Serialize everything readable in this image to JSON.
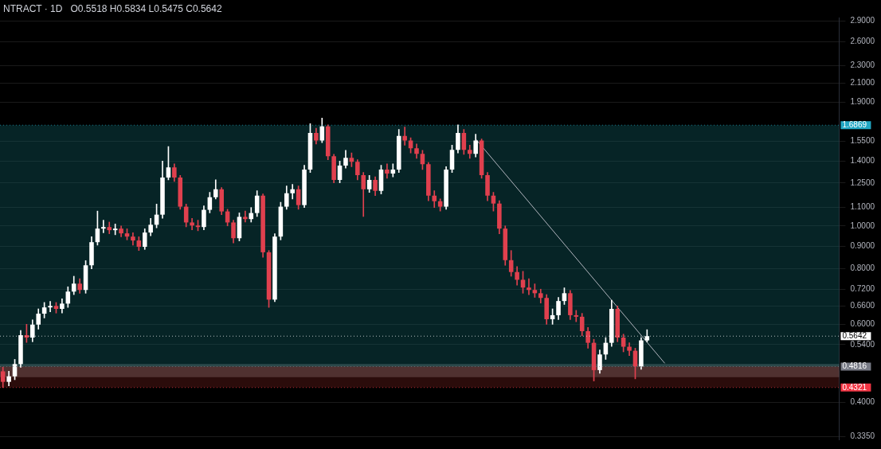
{
  "chart_data": {
    "type": "candlestick",
    "title": "NTRACT · 1D",
    "annotations": [
      "O0.5518 H0.5834 L0.5475 C0.5642"
    ],
    "categories": [
      null,
      null,
      null,
      null,
      null,
      null,
      null,
      null,
      null,
      null,
      null,
      null,
      null,
      null,
      null,
      null,
      null,
      null,
      null,
      null,
      null,
      null,
      null,
      null,
      null,
      null,
      null,
      null,
      null,
      null,
      null,
      null,
      null,
      null,
      null,
      null,
      null,
      null,
      null,
      null,
      null,
      null,
      null,
      null,
      null,
      null,
      null,
      null,
      null,
      null,
      null,
      null,
      null,
      null,
      null,
      null,
      null,
      null,
      null,
      null,
      null,
      null,
      null,
      null,
      null,
      null,
      null,
      null,
      null,
      null,
      null,
      null,
      null,
      null,
      null,
      null,
      null,
      null,
      null,
      null,
      null,
      null,
      null,
      null,
      null,
      null,
      null,
      null,
      null,
      null,
      null,
      null,
      null,
      null,
      null,
      null,
      null,
      null,
      null,
      null,
      null,
      null,
      null,
      null,
      null,
      null,
      null,
      null,
      null,
      null,
      null,
      null,
      null,
      null,
      null,
      null,
      null,
      null,
      null,
      null,
      null,
      null,
      null,
      null,
      null,
      null,
      null,
      null,
      null,
      null,
      null,
      null,
      null,
      null,
      null,
      null,
      null,
      null,
      null,
      null,
      null,
      null
    ],
    "ohlc": [
      [
        0.47,
        0.48,
        0.432,
        0.445
      ],
      [
        0.445,
        0.47,
        0.436,
        0.458
      ],
      [
        0.458,
        0.5,
        0.45,
        0.488
      ],
      [
        0.488,
        0.581,
        0.48,
        0.567
      ],
      [
        0.567,
        0.6,
        0.546,
        0.56
      ],
      [
        0.56,
        0.614,
        0.548,
        0.599
      ],
      [
        0.599,
        0.65,
        0.585,
        0.634
      ],
      [
        0.634,
        0.672,
        0.62,
        0.655
      ],
      [
        0.655,
        0.676,
        0.64,
        0.66
      ],
      [
        0.66,
        0.672,
        0.636,
        0.65
      ],
      [
        0.65,
        0.685,
        0.636,
        0.668
      ],
      [
        0.668,
        0.729,
        0.655,
        0.711
      ],
      [
        0.711,
        0.77,
        0.7,
        0.741
      ],
      [
        0.741,
        0.76,
        0.705,
        0.717
      ],
      [
        0.717,
        0.835,
        0.705,
        0.815
      ],
      [
        0.815,
        0.945,
        0.8,
        0.919
      ],
      [
        0.919,
        1.08,
        0.905,
        0.986
      ],
      [
        0.986,
        1.03,
        0.965,
        0.994
      ],
      [
        0.994,
        1.02,
        0.96,
        0.978
      ],
      [
        0.978,
        1.01,
        0.955,
        0.986
      ],
      [
        0.986,
        1.0,
        0.945,
        0.962
      ],
      [
        0.962,
        0.985,
        0.93,
        0.946
      ],
      [
        0.946,
        0.965,
        0.905,
        0.927
      ],
      [
        0.927,
        0.945,
        0.88,
        0.897
      ],
      [
        0.897,
        0.985,
        0.885,
        0.966
      ],
      [
        0.966,
        1.04,
        0.95,
        1.006
      ],
      [
        1.006,
        1.12,
        0.99,
        1.06
      ],
      [
        1.06,
        1.4,
        1.04,
        1.285
      ],
      [
        1.285,
        1.51,
        1.27,
        1.355
      ],
      [
        1.355,
        1.38,
        1.26,
        1.285
      ],
      [
        1.285,
        1.3,
        1.09,
        1.105
      ],
      [
        1.105,
        1.12,
        0.995,
        1.018
      ],
      [
        1.018,
        1.04,
        0.98,
        1.002
      ],
      [
        1.002,
        1.03,
        0.975,
        0.994
      ],
      [
        0.994,
        1.11,
        0.98,
        1.087
      ],
      [
        1.087,
        1.19,
        1.07,
        1.161
      ],
      [
        1.161,
        1.27,
        1.15,
        1.209
      ],
      [
        1.209,
        1.22,
        1.06,
        1.078
      ],
      [
        1.078,
        1.09,
        1.0,
        1.018
      ],
      [
        1.018,
        1.03,
        0.915,
        0.938
      ],
      [
        0.938,
        1.07,
        0.925,
        1.048
      ],
      [
        1.048,
        1.08,
        1.02,
        1.036
      ],
      [
        1.036,
        1.1,
        1.02,
        1.069
      ],
      [
        1.069,
        1.2,
        1.05,
        1.17
      ],
      [
        1.17,
        1.18,
        0.85,
        0.872
      ],
      [
        0.872,
        0.88,
        0.655,
        0.682
      ],
      [
        0.682,
        0.96,
        0.675,
        0.946
      ],
      [
        0.946,
        1.13,
        0.93,
        1.105
      ],
      [
        1.105,
        1.23,
        1.09,
        1.185
      ],
      [
        1.185,
        1.24,
        1.15,
        1.209
      ],
      [
        1.209,
        1.23,
        1.09,
        1.114
      ],
      [
        1.114,
        1.37,
        1.1,
        1.339
      ],
      [
        1.339,
        1.7,
        1.32,
        1.621
      ],
      [
        1.621,
        1.66,
        1.53,
        1.558
      ],
      [
        1.558,
        1.75,
        1.54,
        1.676
      ],
      [
        1.676,
        1.69,
        1.41,
        1.436
      ],
      [
        1.436,
        1.45,
        1.25,
        1.269
      ],
      [
        1.269,
        1.4,
        1.25,
        1.367
      ],
      [
        1.367,
        1.48,
        1.35,
        1.424
      ],
      [
        1.424,
        1.46,
        1.36,
        1.395
      ],
      [
        1.395,
        1.41,
        1.27,
        1.301
      ],
      [
        1.301,
        1.32,
        1.05,
        1.209
      ],
      [
        1.209,
        1.3,
        1.19,
        1.269
      ],
      [
        1.269,
        1.29,
        1.17,
        1.199
      ],
      [
        1.199,
        1.37,
        1.18,
        1.339
      ],
      [
        1.339,
        1.38,
        1.28,
        1.312
      ],
      [
        1.312,
        1.38,
        1.29,
        1.339
      ],
      [
        1.339,
        1.65,
        1.32,
        1.595
      ],
      [
        1.595,
        1.67,
        1.52,
        1.558
      ],
      [
        1.558,
        1.58,
        1.46,
        1.496
      ],
      [
        1.496,
        1.53,
        1.42,
        1.454
      ],
      [
        1.454,
        1.48,
        1.34,
        1.378
      ],
      [
        1.378,
        1.39,
        1.14,
        1.17
      ],
      [
        1.17,
        1.2,
        1.1,
        1.137
      ],
      [
        1.137,
        1.15,
        1.08,
        1.105
      ],
      [
        1.105,
        1.36,
        1.09,
        1.339
      ],
      [
        1.339,
        1.52,
        1.32,
        1.484
      ],
      [
        1.484,
        1.69,
        1.46,
        1.621
      ],
      [
        1.621,
        1.65,
        1.45,
        1.484
      ],
      [
        1.484,
        1.52,
        1.42,
        1.454
      ],
      [
        1.454,
        1.61,
        1.43,
        1.558
      ],
      [
        1.558,
        1.57,
        1.28,
        1.301
      ],
      [
        1.301,
        1.32,
        1.14,
        1.17
      ],
      [
        1.17,
        1.19,
        1.08,
        1.123
      ],
      [
        1.123,
        1.14,
        0.96,
        0.986
      ],
      [
        0.986,
        1.0,
        0.815,
        0.837
      ],
      [
        0.837,
        0.88,
        0.77,
        0.787
      ],
      [
        0.787,
        0.81,
        0.735,
        0.756
      ],
      [
        0.756,
        0.79,
        0.705,
        0.726
      ],
      [
        0.726,
        0.76,
        0.7,
        0.717
      ],
      [
        0.717,
        0.74,
        0.69,
        0.705
      ],
      [
        0.705,
        0.72,
        0.67,
        0.688
      ],
      [
        0.688,
        0.7,
        0.6,
        0.616
      ],
      [
        0.616,
        0.65,
        0.6,
        0.629
      ],
      [
        0.629,
        0.69,
        0.615,
        0.677
      ],
      [
        0.677,
        0.725,
        0.665,
        0.705
      ],
      [
        0.705,
        0.715,
        0.615,
        0.629
      ],
      [
        0.629,
        0.645,
        0.608,
        0.624
      ],
      [
        0.624,
        0.635,
        0.565,
        0.579
      ],
      [
        0.579,
        0.59,
        0.53,
        0.545
      ],
      [
        0.545,
        0.555,
        0.447,
        0.473
      ],
      [
        0.473,
        0.525,
        0.465,
        0.513
      ],
      [
        0.513,
        0.56,
        0.5,
        0.545
      ],
      [
        0.545,
        0.68,
        0.535,
        0.65
      ],
      [
        0.65,
        0.66,
        0.548,
        0.56
      ],
      [
        0.56,
        0.57,
        0.52,
        0.534
      ],
      [
        0.534,
        0.545,
        0.51,
        0.523
      ],
      [
        0.523,
        0.53,
        0.452,
        0.482
      ],
      [
        0.482,
        0.56,
        0.475,
        0.552
      ],
      [
        0.5518,
        0.5834,
        0.5475,
        0.5642
      ],
      null,
      null,
      null,
      null,
      null,
      null,
      null,
      null,
      null,
      null,
      null,
      null,
      null,
      null,
      null,
      null,
      null,
      null,
      null,
      null,
      null,
      null,
      null,
      null,
      null,
      null,
      null,
      null,
      null,
      null,
      null,
      null
    ],
    "series": [
      {
        "type": "line",
        "color": "#b2b5be",
        "values": [
          null,
          null,
          null,
          null,
          null,
          null,
          null,
          null,
          null,
          null,
          null,
          null,
          null,
          null,
          null,
          null,
          null,
          null,
          null,
          null,
          null,
          null,
          null,
          null,
          null,
          null,
          null,
          null,
          null,
          null,
          null,
          null,
          null,
          null,
          null,
          null,
          null,
          null,
          null,
          null,
          null,
          null,
          null,
          null,
          null,
          null,
          null,
          null,
          null,
          null,
          null,
          null,
          null,
          null,
          null,
          null,
          null,
          null,
          null,
          null,
          null,
          null,
          null,
          null,
          null,
          null,
          null,
          null,
          null,
          null,
          null,
          null,
          null,
          null,
          null,
          null,
          null,
          null,
          null,
          null,
          1.57,
          null,
          null,
          null,
          null,
          null,
          null,
          null,
          null,
          null,
          null,
          null,
          null,
          null,
          null,
          null,
          null,
          null,
          null,
          null,
          null,
          null,
          null,
          null,
          null,
          null,
          null,
          null,
          null,
          null,
          null,
          null,
          0.49,
          null,
          null,
          null,
          null,
          null,
          null,
          null,
          null,
          null,
          null,
          null,
          null,
          null,
          null,
          null,
          null,
          null,
          null,
          null,
          null,
          null,
          null,
          null,
          null,
          null,
          null,
          null,
          null,
          null
        ]
      }
    ],
    "log": true,
    "ylim": [
      0.33,
      2.95
    ],
    "yticks": [
      {
        "value": 0.335,
        "label": "0.3350"
      },
      {
        "value": 0.4,
        "label": "0.4000"
      },
      {
        "value": 0.54,
        "label": "0.5400"
      },
      {
        "value": 0.6,
        "label": "0.6000"
      },
      {
        "value": 0.66,
        "label": "0.6600"
      },
      {
        "value": 0.72,
        "label": "0.7200"
      },
      {
        "value": 0.8,
        "label": "0.8000"
      },
      {
        "value": 0.9,
        "label": "0.9000"
      },
      {
        "value": 1,
        "label": "1.0000"
      },
      {
        "value": 1.1,
        "label": "1.1000"
      },
      {
        "value": 1.25,
        "label": "1.2500"
      },
      {
        "value": 1.4,
        "label": "1.4000"
      },
      {
        "value": 1.55,
        "label": "1.5500"
      },
      {
        "value": 1.9,
        "label": "1.9000"
      },
      {
        "value": 2.1,
        "label": "2.1000"
      },
      {
        "value": 2.3,
        "label": "2.3000"
      },
      {
        "value": 2.6,
        "label": "2.6000"
      },
      {
        "value": 2.9,
        "label": "2.9000"
      }
    ],
    "bands": [
      {
        "axis": "y",
        "from": 0.456,
        "to": 0.488,
        "color": "#9e9e9e"
      },
      {
        "axis": "y",
        "from": 0.4816,
        "to": 1.6869,
        "color": "#0f5a5f"
      },
      {
        "axis": "y",
        "from": 0.4321,
        "to": 0.4816,
        "color": "#6b1f1c"
      }
    ],
    "ref_lines": [
      {
        "axis": "y",
        "value": 1.6869,
        "label": "1.6869",
        "color": "#22a7c4",
        "line_style": "dotted"
      },
      {
        "axis": "y",
        "value": 0.5642,
        "label": "0.5642",
        "color": "#ffffff",
        "line_style": "dotted"
      },
      {
        "axis": "y",
        "value": 0.4816,
        "label": "0.4816",
        "color": "#787b86",
        "line_style": "dotted"
      },
      {
        "axis": "y",
        "value": 0.4321,
        "label": "0.4321",
        "color": "#f23645",
        "line_style": "dotted"
      }
    ],
    "grid": "y",
    "legend": false
  }
}
